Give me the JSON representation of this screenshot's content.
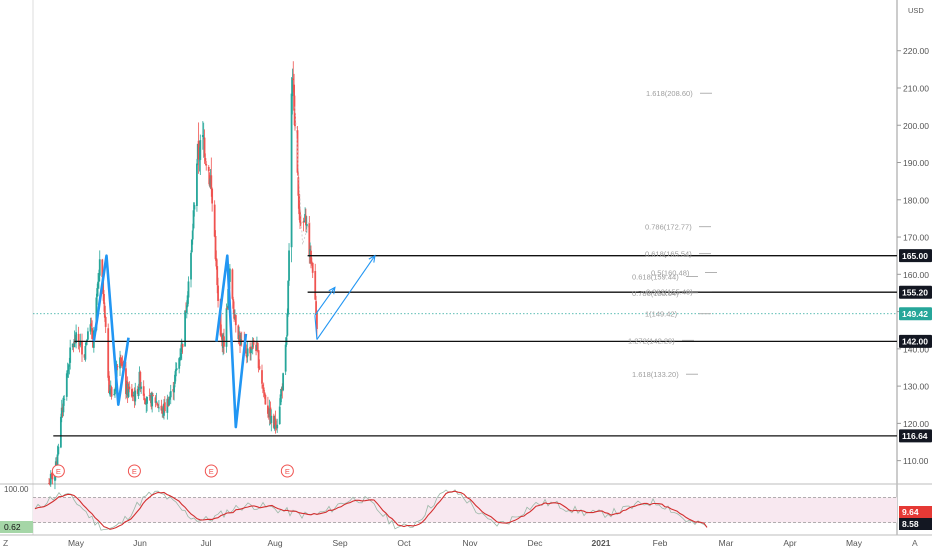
{
  "chart_data": {
    "type": "candlestick",
    "currency": "USD",
    "y_ticks": [
      "110.00",
      "120.00",
      "130.00",
      "140.00",
      "150.00",
      "160.00",
      "170.00",
      "180.00",
      "190.00",
      "200.00",
      "210.00",
      "220.00"
    ],
    "y_range": [
      104,
      232
    ],
    "x_ticks": [
      "May",
      "Jun",
      "Jul",
      "Aug",
      "Sep",
      "Oct",
      "Nov",
      "Dec",
      "2021",
      "Feb",
      "Mar",
      "Apr",
      "May"
    ],
    "price_labels": [
      {
        "value": 165.0,
        "text": "165.00",
        "style": "black"
      },
      {
        "value": 155.2,
        "text": "155.20",
        "style": "black"
      },
      {
        "value": 149.42,
        "text": "149.42",
        "style": "teal"
      },
      {
        "value": 142.0,
        "text": "142.00",
        "style": "black"
      },
      {
        "value": 116.64,
        "text": "116.64",
        "style": "black"
      }
    ],
    "horizontal_levels": [
      {
        "value": 165.0,
        "from": "2021-02-20",
        "to": "end"
      },
      {
        "value": 155.2,
        "from": "2021-02-20",
        "to": "end"
      },
      {
        "value": 142.0,
        "from": "2020-05-20",
        "to": "end"
      },
      {
        "value": 116.64,
        "from": "2020-04-25",
        "to": "end"
      },
      {
        "value": 149.42,
        "from": "start",
        "to": "end",
        "dotted": true
      }
    ],
    "fib_labels": [
      {
        "text": "1.618(208.60)",
        "value": 208.6
      },
      {
        "text": "0.786(172.77)",
        "value": 172.77
      },
      {
        "text": "0.618(165.54)",
        "value": 165.54
      },
      {
        "text": "0.5(160.48)",
        "value": 160.48
      },
      {
        "text": "0.618(159.44)",
        "value": 159.44
      },
      {
        "text": "0.382(155.40)",
        "value": 155.4
      },
      {
        "text": "0.786(155.04)",
        "value": 155.04
      },
      {
        "text": "1(149.42)",
        "value": 149.42
      },
      {
        "text": "1.272(142.29)",
        "value": 142.29
      },
      {
        "text": "1.618(133.20)",
        "value": 133.2
      }
    ],
    "earnings_markers": [
      "2020-05-01",
      "2020-07-30",
      "2020-10-29",
      "2021-01-27"
    ],
    "earnings_label": "E",
    "oscillator": {
      "top_label": "100.00",
      "left_value": "0.62",
      "right_values": [
        {
          "text": "9.64",
          "style": "red"
        },
        {
          "text": "8.58",
          "style": "black"
        }
      ],
      "band": [
        20,
        80
      ]
    },
    "corner_labels": {
      "left": "Z",
      "right": "A"
    },
    "colors": {
      "up": "#26a69a",
      "down": "#ef5350",
      "pattern": "#2196f3",
      "fib": "#9e9e9e"
    }
  }
}
